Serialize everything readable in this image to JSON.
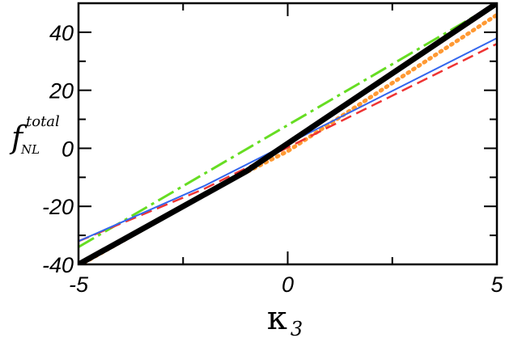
{
  "chart_data": {
    "type": "line",
    "xlabel": {
      "main": "κ",
      "sub": "3"
    },
    "ylabel": {
      "main": "f",
      "sub": "NL",
      "sup": "total"
    },
    "xlim": [
      -5,
      5
    ],
    "ylim": [
      -40,
      50
    ],
    "x_ticks": [
      -5,
      0,
      5
    ],
    "x_tick_labels": [
      "-5",
      "0",
      "5"
    ],
    "y_ticks": [
      -40,
      -20,
      0,
      20,
      40
    ],
    "y_tick_labels": [
      "-40",
      "-20",
      "0",
      "20",
      "40"
    ],
    "grid": false,
    "series": [
      {
        "style": "dash-dot",
        "color": "#66dd22",
        "x": [
          -5,
          5
        ],
        "y": [
          -34,
          50
        ]
      },
      {
        "style": "dotted",
        "color": "#ff9933",
        "x": [
          -5,
          -1.5,
          0,
          5
        ],
        "y": [
          -40.5,
          -12,
          -1,
          46
        ]
      },
      {
        "style": "dashed",
        "color": "#ee3333",
        "x": [
          -5,
          -2,
          5
        ],
        "y": [
          -32,
          -14,
          36
        ]
      },
      {
        "style": "solid-thin",
        "color": "#3366ee",
        "x": [
          -5,
          -2,
          5
        ],
        "y": [
          -32,
          -13,
          38
        ]
      },
      {
        "style": "solid-thick",
        "color": "#000000",
        "x": [
          -5,
          -1,
          5
        ],
        "y": [
          -40,
          -8,
          50
        ]
      }
    ]
  }
}
